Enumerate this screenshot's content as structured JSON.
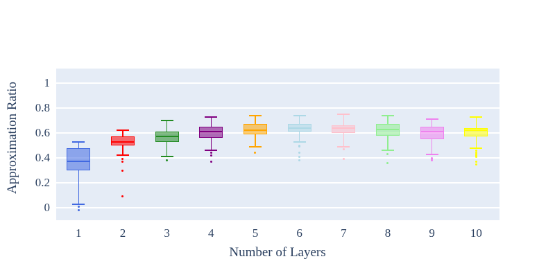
{
  "chart_data": {
    "type": "box",
    "title": "",
    "xlabel": "Number of Layers",
    "ylabel": "Approximation Ratio",
    "categories": [
      "1",
      "2",
      "3",
      "4",
      "5",
      "6",
      "7",
      "8",
      "9",
      "10"
    ],
    "y_tick_values": [
      0,
      0.2,
      0.4,
      0.6,
      0.8,
      1
    ],
    "y_tick_labels": [
      "0",
      "0.2",
      "0.4",
      "0.6",
      "0.8",
      "1"
    ],
    "ylim": [
      -0.12,
      1.13
    ],
    "grid": true,
    "legend": false,
    "plot_bg_color": "#E5ECF6",
    "grid_color": "#FFFFFF",
    "text_color": "#2A3F5F",
    "series": [
      {
        "category": "1",
        "color": "#4169E1",
        "low": 0.03,
        "q1": 0.3,
        "median": 0.37,
        "q3": 0.48,
        "high": 0.53,
        "outliers": [
          0.01,
          -0.02
        ]
      },
      {
        "category": "2",
        "color": "#FF0000",
        "low": 0.42,
        "q1": 0.5,
        "median": 0.53,
        "q3": 0.57,
        "high": 0.62,
        "outliers": [
          0.39,
          0.37,
          0.3,
          0.09
        ]
      },
      {
        "category": "3",
        "color": "#228B22",
        "low": 0.41,
        "q1": 0.53,
        "median": 0.57,
        "q3": 0.61,
        "high": 0.7,
        "outliers": [
          0.38
        ]
      },
      {
        "category": "4",
        "color": "#800080",
        "low": 0.46,
        "q1": 0.56,
        "median": 0.61,
        "q3": 0.65,
        "high": 0.73,
        "outliers": [
          0.44,
          0.42,
          0.37
        ]
      },
      {
        "category": "5",
        "color": "#FFA500",
        "low": 0.49,
        "q1": 0.59,
        "median": 0.62,
        "q3": 0.67,
        "high": 0.74,
        "outliers": [
          0.44
        ]
      },
      {
        "category": "6",
        "color": "#ADD8E6",
        "low": 0.53,
        "q1": 0.61,
        "median": 0.64,
        "q3": 0.67,
        "high": 0.74,
        "outliers": [
          0.5,
          0.49,
          0.44,
          0.41,
          0.38
        ]
      },
      {
        "category": "7",
        "color": "#FFC0CB",
        "low": 0.49,
        "q1": 0.6,
        "median": 0.64,
        "q3": 0.66,
        "high": 0.75,
        "outliers": [
          0.47,
          0.39
        ]
      },
      {
        "category": "8",
        "color": "#90EE90",
        "low": 0.46,
        "q1": 0.58,
        "median": 0.63,
        "q3": 0.67,
        "high": 0.74,
        "outliers": [
          0.43,
          0.36
        ]
      },
      {
        "category": "9",
        "color": "#EE82EE",
        "low": 0.43,
        "q1": 0.55,
        "median": 0.61,
        "q3": 0.65,
        "high": 0.71,
        "outliers": [
          0.4,
          0.39,
          0.38
        ]
      },
      {
        "category": "10",
        "color": "#FFFF00",
        "low": 0.48,
        "q1": 0.57,
        "median": 0.62,
        "q3": 0.64,
        "high": 0.73,
        "outliers": [
          0.46,
          0.44,
          0.43,
          0.42,
          0.41,
          0.37,
          0.35
        ]
      }
    ]
  }
}
